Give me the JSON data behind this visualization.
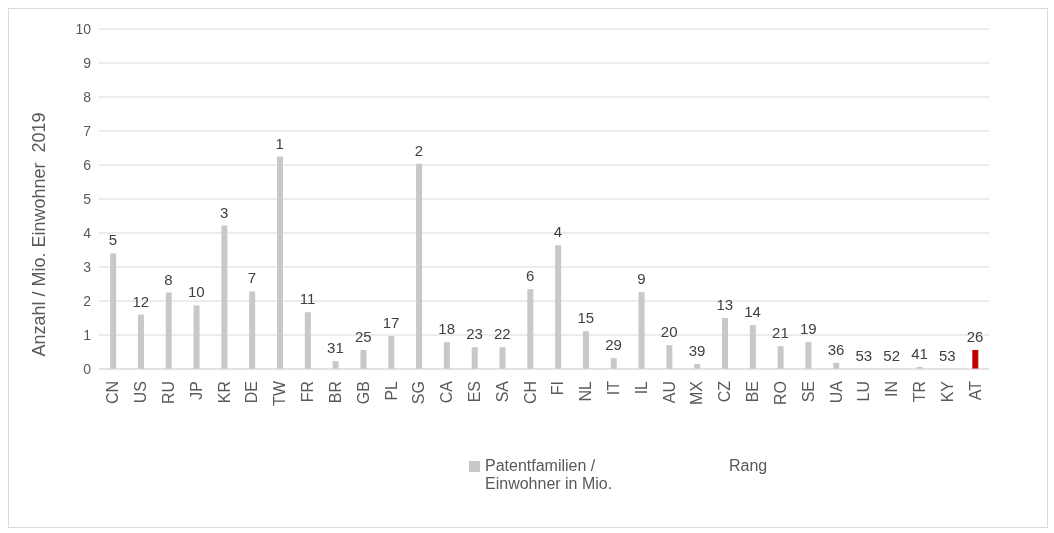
{
  "chart_data": {
    "type": "bar",
    "ylabel": "Anzahl / Mio. Einwohner  2019",
    "categories": [
      "CN",
      "US",
      "RU",
      "JP",
      "KR",
      "DE",
      "TW",
      "FR",
      "BR",
      "GB",
      "PL",
      "SG",
      "CA",
      "ES",
      "SA",
      "CH",
      "FI",
      "NL",
      "IT",
      "IL",
      "AU",
      "MX",
      "CZ",
      "BE",
      "RO",
      "SE",
      "UA",
      "LU",
      "IN",
      "TR",
      "KY",
      "AT"
    ],
    "series": [
      {
        "name": "Patentfamilien / Einwohner in Mio.",
        "color": "#c8c8c8",
        "colors": [
          "#c8c8c8",
          "#c8c8c8",
          "#c8c8c8",
          "#c8c8c8",
          "#c8c8c8",
          "#c8c8c8",
          "#c8c8c8",
          "#c8c8c8",
          "#c8c8c8",
          "#c8c8c8",
          "#c8c8c8",
          "#c8c8c8",
          "#c8c8c8",
          "#c8c8c8",
          "#c8c8c8",
          "#c8c8c8",
          "#c8c8c8",
          "#c8c8c8",
          "#c8c8c8",
          "#c8c8c8",
          "#c8c8c8",
          "#c8c8c8",
          "#c8c8c8",
          "#c8c8c8",
          "#c8c8c8",
          "#c8c8c8",
          "#c8c8c8",
          "#c8c8c8",
          "#c8c8c8",
          "#c8c8c8",
          "#c8c8c8",
          "#c00000"
        ],
        "values": [
          3.4,
          1.6,
          2.25,
          1.87,
          4.22,
          2.28,
          6.25,
          1.67,
          0.23,
          0.56,
          0.97,
          6.04,
          0.79,
          0.64,
          0.64,
          2.35,
          3.64,
          1.11,
          0.32,
          2.26,
          0.7,
          0.15,
          1.5,
          1.29,
          0.67,
          0.79,
          0.18,
          0,
          0,
          0.06,
          0,
          0.56
        ]
      }
    ],
    "ylim": [
      0,
      10
    ],
    "yticks": [
      0,
      1,
      2,
      3,
      4,
      5,
      6,
      7,
      8,
      9,
      10
    ],
    "grid": "y",
    "legend": "bottom",
    "annotations": [
      "Rang",
      {
        "text": "5",
        "x": "CN",
        "y": 3.4
      },
      {
        "text": "12",
        "x": "US",
        "y": 1.6
      },
      {
        "text": "8",
        "x": "RU",
        "y": 2.25
      },
      {
        "text": "10",
        "x": "JP",
        "y": 1.87
      },
      {
        "text": "3",
        "x": "KR",
        "y": 4.22
      },
      {
        "text": "7",
        "x": "DE",
        "y": 2.28
      },
      {
        "text": "1",
        "x": "TW",
        "y": 6.25
      },
      {
        "text": "11",
        "x": "FR",
        "y": 1.67
      },
      {
        "text": "31",
        "x": "BR",
        "y": 0.23
      },
      {
        "text": "25",
        "x": "GB",
        "y": 0.56
      },
      {
        "text": "17",
        "x": "PL",
        "y": 0.97
      },
      {
        "text": "2",
        "x": "SG",
        "y": 6.04
      },
      {
        "text": "18",
        "x": "CA",
        "y": 0.79
      },
      {
        "text": "23",
        "x": "ES",
        "y": 0.64
      },
      {
        "text": "22",
        "x": "SA",
        "y": 0.64
      },
      {
        "text": "6",
        "x": "CH",
        "y": 2.35
      },
      {
        "text": "4",
        "x": "FI",
        "y": 3.64
      },
      {
        "text": "15",
        "x": "NL",
        "y": 1.11
      },
      {
        "text": "29",
        "x": "IT",
        "y": 0.32
      },
      {
        "text": "9",
        "x": "IL",
        "y": 2.26
      },
      {
        "text": "20",
        "x": "AU",
        "y": 0.7
      },
      {
        "text": "39",
        "x": "MX",
        "y": 0.15
      },
      {
        "text": "13",
        "x": "CZ",
        "y": 1.5
      },
      {
        "text": "14",
        "x": "BE",
        "y": 1.29
      },
      {
        "text": "21",
        "x": "RO",
        "y": 0.67
      },
      {
        "text": "19",
        "x": "SE",
        "y": 0.79
      },
      {
        "text": "36",
        "x": "UA",
        "y": 0.18
      },
      {
        "text": "53",
        "x": "LU",
        "y": 0
      },
      {
        "text": "52",
        "x": "IN",
        "y": 0
      },
      {
        "text": "41",
        "x": "TR",
        "y": 0.06
      },
      {
        "text": "53",
        "x": "KY",
        "y": 0
      },
      {
        "text": "26",
        "x": "AT",
        "y": 0.56
      }
    ]
  }
}
